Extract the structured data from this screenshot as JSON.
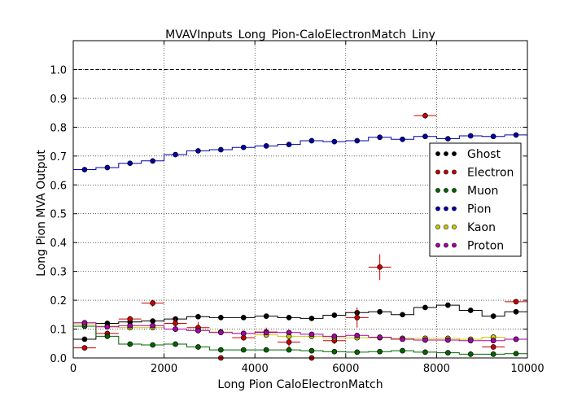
{
  "chart_data": {
    "type": "scatter",
    "title": "MVAVInputs_Long_Pion-CaloElectronMatch_Liny",
    "xlabel": "Long Pion CaloElectronMatch",
    "ylabel": "Long Pion MVA Output",
    "xlim": [
      0,
      10000
    ],
    "ylim": [
      0,
      1.1
    ],
    "xticks": [
      "0",
      "2000",
      "4000",
      "6000",
      "8000",
      "10000"
    ],
    "yticks": [
      "0.0",
      "0.1",
      "0.2",
      "0.3",
      "0.4",
      "0.5",
      "0.6",
      "0.7",
      "0.8",
      "0.9",
      "1.0"
    ],
    "grid": true,
    "reference_line": 1.0,
    "bin_width": 500,
    "legend_position": "right",
    "series": [
      {
        "name": "Ghost",
        "color": "#000000",
        "style": "histogram",
        "x": [
          250,
          750,
          1250,
          1750,
          2250,
          2750,
          3250,
          3750,
          4250,
          4750,
          5250,
          5750,
          6250,
          6750,
          7250,
          7750,
          8250,
          8750,
          9250,
          9750
        ],
        "y": [
          0.065,
          0.12,
          0.125,
          0.128,
          0.135,
          0.143,
          0.14,
          0.14,
          0.145,
          0.14,
          0.137,
          0.148,
          0.157,
          0.16,
          0.15,
          0.175,
          0.183,
          0.165,
          0.145,
          0.16
        ]
      },
      {
        "name": "Electron",
        "color": "#cc0000",
        "style": "errorbar",
        "x": [
          250,
          750,
          1250,
          1750,
          2250,
          2750,
          3250,
          3750,
          4250,
          4750,
          5250,
          5750,
          6250,
          6750,
          7750,
          9250,
          9750
        ],
        "y": [
          0.035,
          0.085,
          0.135,
          0.19,
          0.12,
          0.105,
          0.0,
          0.07,
          0.09,
          0.055,
          0.0,
          0.06,
          0.14,
          0.315,
          0.84,
          0.038,
          0.195
        ],
        "yerr": [
          0.005,
          0.008,
          0.01,
          0.012,
          0.015,
          0.02,
          0.005,
          0.01,
          0.015,
          0.02,
          0.005,
          0.012,
          0.035,
          0.045,
          0.01,
          0.008,
          0.008
        ]
      },
      {
        "name": "Muon",
        "color": "#006600",
        "style": "histogram",
        "x": [
          250,
          750,
          1250,
          1750,
          2250,
          2750,
          3250,
          3750,
          4250,
          4750,
          5250,
          5750,
          6250,
          6750,
          7250,
          7750,
          8250,
          8750,
          9250,
          9750
        ],
        "y": [
          0.11,
          0.075,
          0.048,
          0.045,
          0.048,
          0.038,
          0.028,
          0.028,
          0.028,
          0.028,
          0.025,
          0.022,
          0.02,
          0.022,
          0.025,
          0.02,
          0.018,
          0.013,
          0.013,
          0.015
        ]
      },
      {
        "name": "Pion",
        "color": "#0000aa",
        "style": "histogram",
        "x": [
          250,
          750,
          1250,
          1750,
          2250,
          2750,
          3250,
          3750,
          4250,
          4750,
          5250,
          5750,
          6250,
          6750,
          7250,
          7750,
          8250,
          8750,
          9250,
          9750
        ],
        "y": [
          0.653,
          0.66,
          0.675,
          0.683,
          0.705,
          0.718,
          0.722,
          0.73,
          0.735,
          0.74,
          0.753,
          0.75,
          0.753,
          0.765,
          0.758,
          0.768,
          0.76,
          0.77,
          0.768,
          0.773
        ]
      },
      {
        "name": "Kaon",
        "color": "#cccc00",
        "style": "histogram",
        "x": [
          250,
          750,
          1250,
          1750,
          2250,
          2750,
          3250,
          3750,
          4250,
          4750,
          5250,
          5750,
          6250,
          6750,
          7250,
          7750,
          8250,
          8750,
          9250,
          9750
        ],
        "y": [
          0.118,
          0.11,
          0.105,
          0.105,
          0.1,
          0.095,
          0.09,
          0.085,
          0.08,
          0.075,
          0.075,
          0.07,
          0.07,
          0.07,
          0.068,
          0.068,
          0.068,
          0.065,
          0.072,
          0.065
        ]
      },
      {
        "name": "Proton",
        "color": "#aa00aa",
        "style": "histogram",
        "x": [
          250,
          750,
          1250,
          1750,
          2250,
          2750,
          3250,
          3750,
          4250,
          4750,
          5250,
          5750,
          6250,
          6750,
          7250,
          7750,
          8250,
          8750,
          9250,
          9750
        ],
        "y": [
          0.122,
          0.108,
          0.112,
          0.112,
          0.1,
          0.095,
          0.088,
          0.085,
          0.088,
          0.088,
          0.082,
          0.075,
          0.078,
          0.072,
          0.065,
          0.062,
          0.062,
          0.06,
          0.06,
          0.065
        ]
      }
    ]
  }
}
